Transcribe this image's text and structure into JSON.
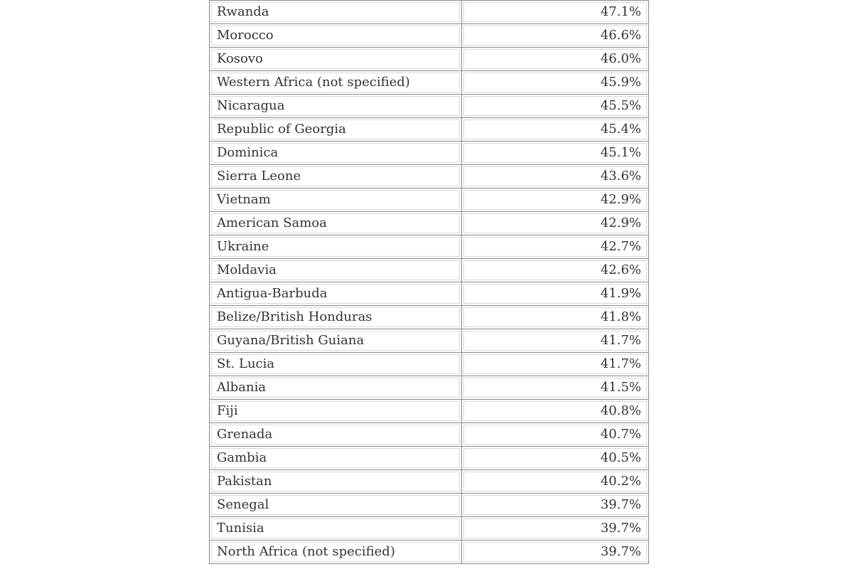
{
  "rows": [
    {
      "country": "Rwanda",
      "value": "47.1%"
    },
    {
      "country": "Morocco",
      "value": "46.6%"
    },
    {
      "country": "Kosovo",
      "value": "46.0%"
    },
    {
      "country": "Western Africa (not specified)",
      "value": "45.9%"
    },
    {
      "country": "Nicaragua",
      "value": "45.5%"
    },
    {
      "country": "Republic of Georgia",
      "value": "45.4%"
    },
    {
      "country": "Dominica",
      "value": "45.1%"
    },
    {
      "country": "Sierra Leone",
      "value": "43.6%"
    },
    {
      "country": "Vietnam",
      "value": "42.9%"
    },
    {
      "country": "American Samoa",
      "value": "42.9%"
    },
    {
      "country": "Ukraine",
      "value": "42.7%"
    },
    {
      "country": "Moldavia",
      "value": "42.6%"
    },
    {
      "country": "Antigua-Barbuda",
      "value": "41.9%"
    },
    {
      "country": "Belize/British Honduras",
      "value": "41.8%"
    },
    {
      "country": "Guyana/British Guiana",
      "value": "41.7%"
    },
    {
      "country": "St. Lucia",
      "value": "41.7%"
    },
    {
      "country": "Albania",
      "value": "41.5%"
    },
    {
      "country": "Fiji",
      "value": "40.8%"
    },
    {
      "country": "Grenada",
      "value": "40.7%"
    },
    {
      "country": "Gambia",
      "value": "40.5%"
    },
    {
      "country": "Pakistan",
      "value": "40.2%"
    },
    {
      "country": "Senegal",
      "value": "39.7%"
    },
    {
      "country": "Tunisia",
      "value": "39.7%"
    },
    {
      "country": "North Africa (not specified)",
      "value": "39.7%"
    }
  ]
}
